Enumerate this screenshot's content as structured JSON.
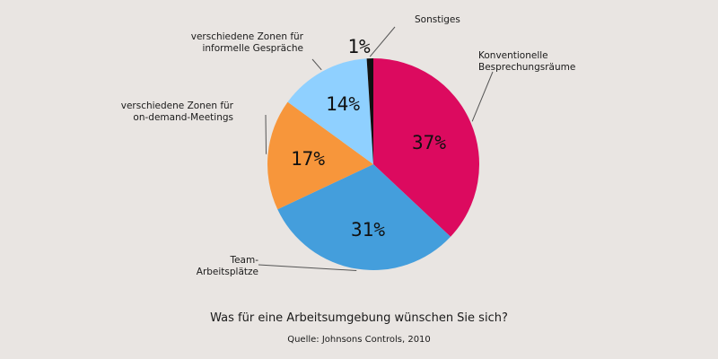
{
  "chart_data": {
    "type": "pie",
    "title": "Was für eine Arbeitsumgebung wünschen Sie sich?",
    "source": "Quelle: Johnsons Controls, 2010",
    "slices": [
      {
        "label_lines": [
          "Konventionelle",
          "Besprechungsräume"
        ],
        "value": 37,
        "value_label": "37%",
        "color": "#dc0a5f"
      },
      {
        "label_lines": [
          "Team-",
          "Arbeitsplätze"
        ],
        "value": 31,
        "value_label": "31%",
        "color": "#449edc"
      },
      {
        "label_lines": [
          "verschiedene Zonen für",
          "on-demand-Meetings"
        ],
        "value": 17,
        "value_label": "17%",
        "color": "#f7963b"
      },
      {
        "label_lines": [
          "verschiedene Zonen für",
          "informelle Gespräche"
        ],
        "value": 14,
        "value_label": "14%",
        "color": "#8fd0ff"
      },
      {
        "label_lines": [
          "Sonstiges"
        ],
        "value": 1,
        "value_label": "1%",
        "color": "#111111"
      }
    ]
  }
}
